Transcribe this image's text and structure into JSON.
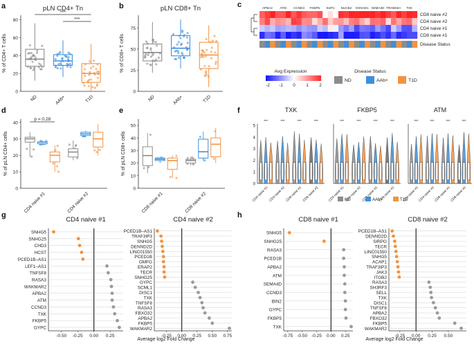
{
  "colors": {
    "ND": "#8c8c8c",
    "AAb": "#3d8fdb",
    "T1D": "#f4923f",
    "orange": "#f4923f",
    "grey": "#9a9a9a"
  },
  "chart_data": [
    {
      "panel": "a",
      "type": "box",
      "title": "pLN CD4+ Tn",
      "ylabel": "% of CD4+ T cells",
      "categories": [
        "ND",
        "AAb+",
        "T1D"
      ],
      "ylim": [
        0,
        85
      ],
      "yticks": [
        "0",
        "20",
        "40",
        "60",
        "80"
      ],
      "box": [
        [
          12,
          28,
          36,
          47,
          76
        ],
        [
          16,
          29,
          34,
          41,
          57
        ],
        [
          0,
          10,
          20,
          31,
          53
        ]
      ],
      "signif": [
        "***",
        "***"
      ]
    },
    {
      "panel": "b",
      "type": "box",
      "title": "pLN CD8+ Tn",
      "ylabel": "% of CD8+ T cells",
      "categories": [
        "ND",
        "AAb+",
        "T1D"
      ],
      "ylim": [
        0,
        90
      ],
      "yticks": [
        "0",
        "25",
        "50",
        "75"
      ],
      "box": [
        [
          22,
          36,
          46,
          56,
          82
        ],
        [
          27,
          42,
          51,
          66,
          85
        ],
        [
          5,
          27,
          43,
          58,
          78
        ]
      ]
    },
    {
      "panel": "c",
      "type": "heatmap",
      "genes": [
        "APBA2",
        "ATM",
        "CCND3",
        "FKBP5",
        "IKZF1",
        "NUCB2",
        "OXNAD1",
        "SEMA4D",
        "TRABD2A",
        "TXK"
      ],
      "rows": [
        "CD8 naive #2",
        "CD4 naive #2",
        "CD4 naive #1",
        "CD8 naive #1"
      ],
      "status_label": "Disease Status",
      "legend_title": "Avg Expression",
      "legend_ticks": [
        "-2",
        "-1",
        "0",
        "1",
        "2"
      ],
      "status_title": "Disease Status",
      "status_legend": [
        "ND",
        "AAb+",
        "T1D"
      ]
    },
    {
      "panel": "d",
      "type": "box",
      "ylabel": "% of pLN CD4+ cells",
      "groups": [
        "CD4 naive #1",
        "CD4 naive #2"
      ],
      "ylim": [
        0,
        42
      ],
      "yticks": [
        "0",
        "10",
        "20",
        "30",
        "40"
      ],
      "pvalue": "p = 0.28",
      "box": [
        [
          [
            19,
            28,
            30,
            31,
            34
          ],
          [
            26,
            27,
            28,
            28,
            29
          ],
          [
            10,
            16,
            20,
            22,
            26
          ]
        ],
        [
          [
            17,
            19,
            22,
            24,
            29
          ],
          [
            31,
            32,
            33,
            34,
            35
          ],
          [
            20,
            25,
            30,
            34,
            39
          ]
        ]
      ]
    },
    {
      "panel": "e",
      "type": "box",
      "ylabel": "% of pLN CD8+ cells",
      "groups": [
        "CD8 naive #1",
        "CD8 naive #2"
      ],
      "ylim": [
        0,
        55
      ],
      "yticks": [
        "0",
        "10",
        "20",
        "30",
        "40",
        "50"
      ],
      "box": [
        [
          [
            12,
            18,
            26,
            33,
            44
          ],
          [
            20,
            22,
            23,
            24,
            25
          ],
          [
            8,
            15,
            22,
            24,
            26
          ]
        ],
        [
          [
            18,
            20,
            22,
            23,
            25
          ],
          [
            22,
            24,
            29,
            39,
            45
          ],
          [
            20,
            25,
            35,
            40,
            48
          ]
        ]
      ]
    },
    {
      "panel": "f",
      "type": "violin",
      "titles": [
        "TXK",
        "FKBP5",
        "ATM"
      ],
      "yticks": [
        "0",
        "1",
        "2",
        "3",
        "4",
        "5"
      ],
      "xticks": [
        "CD4 naive #1",
        "CD4 naive #2",
        "CD8 naive #1",
        "CD8 naive #2"
      ],
      "legend": [
        "ND",
        "AAb+",
        "T1D"
      ],
      "stars": "***"
    },
    {
      "panel": "g",
      "type": "dot",
      "title": "CD4 naive #1",
      "xlabel": "Average log2 Fold Change",
      "xlim": [
        -0.7,
        0.45
      ],
      "xticks": [
        "-0.50",
        "-0.25",
        "0.00",
        "0.25"
      ],
      "genes": [
        "SNHG5",
        "SNHG25",
        "CHD3",
        "HCST",
        "PCED1B–AS1",
        "LEF1–AS1",
        "TNFSF8",
        "RASA3",
        "WAKMAR2",
        "APBA2",
        "ATM",
        "CCND3",
        "TXK",
        "FKBP5",
        "GYPC"
      ],
      "values": [
        -0.62,
        -0.24,
        -0.22,
        -0.19,
        -0.17,
        0.2,
        0.22,
        0.26,
        0.27,
        0.28,
        0.28,
        0.3,
        0.32,
        0.36,
        0.39
      ]
    },
    {
      "panel": "g2",
      "type": "dot",
      "title": "CD4 naive #2",
      "xlabel": "",
      "xlim": [
        -0.45,
        0.82
      ],
      "xticks": [
        "-0.25",
        "0.00",
        "0.25",
        "0.50",
        "0.75"
      ],
      "genes": [
        "PCED1B–AS1",
        "TRAF3IP3",
        "SNHG5",
        "DENND2D",
        "LINC01550",
        "PCED1B",
        "GMFG",
        "ERAP2",
        "TECR",
        "SNHG25",
        "GYPC",
        "SCML1",
        "DISC1",
        "TXK",
        "TNFSF8",
        "RASA3",
        "FBXO32",
        "APBA2",
        "FKBP5",
        "WAKMAR2"
      ],
      "values": [
        -0.4,
        -0.34,
        -0.33,
        -0.32,
        -0.31,
        -0.3,
        -0.3,
        -0.29,
        -0.29,
        -0.28,
        0.18,
        0.22,
        0.27,
        0.3,
        0.33,
        0.35,
        0.38,
        0.45,
        0.5,
        0.78
      ]
    },
    {
      "panel": "h",
      "type": "dot",
      "title": "CD8 naive #1",
      "xlabel": "Average log2 Fold Change",
      "xlim": [
        -0.82,
        0.38
      ],
      "xticks": [
        "-0.75",
        "-0.50",
        "-0.25",
        "0.00",
        "0.25"
      ],
      "genes": [
        "SNHG5",
        "SNHG25",
        "RASA3",
        "PCED1B",
        "APBA2",
        "ATM",
        "SEMA4D",
        "CCND3",
        "BIN2",
        "GYPC",
        "FKBP5",
        "TXK"
      ],
      "values": [
        -0.72,
        -0.12,
        0.22,
        0.22,
        0.23,
        0.23,
        0.24,
        0.24,
        0.25,
        0.25,
        0.26,
        0.35
      ]
    },
    {
      "panel": "h2",
      "type": "dot",
      "title": "CD8 naive #2",
      "xlabel": "",
      "xlim": [
        -0.42,
        0.78
      ],
      "xticks": [
        "-0.25",
        "0.00",
        "0.25",
        "0.50"
      ],
      "genes": [
        "PCED1B–AS1",
        "DENND2D",
        "SIRPG",
        "TECR",
        "LINC01550",
        "SNHG5",
        "ACAP1",
        "TRAF3IP3",
        "JAK3",
        "ITGB2",
        "RASA3",
        "SH3RF3",
        "SELL",
        "TXK",
        "DISC1",
        "TNFSF8",
        "APBA2",
        "FBXO32",
        "FKBP5",
        "WAKMAR2"
      ],
      "values": [
        -0.37,
        -0.35,
        -0.33,
        -0.32,
        -0.31,
        -0.3,
        -0.29,
        -0.28,
        -0.27,
        -0.26,
        0.2,
        0.22,
        0.23,
        0.24,
        0.27,
        0.3,
        0.33,
        0.36,
        0.6,
        0.7
      ]
    }
  ],
  "panel_labels": [
    "a",
    "b",
    "c",
    "d",
    "e",
    "f",
    "g",
    "h"
  ]
}
